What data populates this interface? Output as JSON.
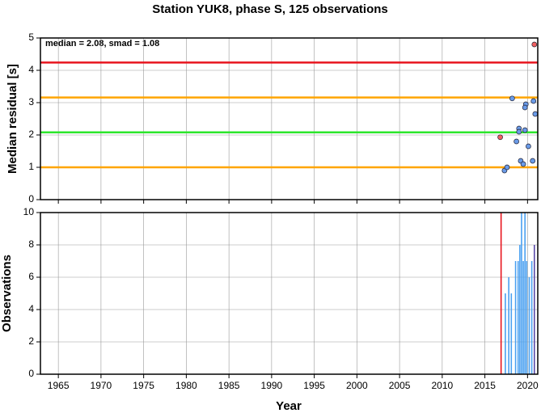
{
  "chart_data": [
    {
      "type": "scatter",
      "title": "Station YUK8, phase S, 125 observations",
      "annotation": "median = 2.08, smad = 1.08",
      "y_label": "Median residual [s]",
      "xlim": [
        1962.9,
        2021.2
      ],
      "ylim": [
        0,
        5
      ],
      "yticks": [
        0,
        1,
        2,
        3,
        4,
        5
      ],
      "grid": true,
      "hlines": [
        {
          "value": 4.24,
          "color": "#e8141e"
        },
        {
          "value": 3.16,
          "color": "#ffa500"
        },
        {
          "value": 2.08,
          "color": "#2de62d"
        },
        {
          "value": 1.0,
          "color": "#ffa500"
        }
      ],
      "series": [
        {
          "color": "#6a9be8",
          "x": [
            2017.3,
            2017.6,
            2018.2,
            2018.7,
            2019.0,
            2019.0,
            2019.2,
            2019.5,
            2019.7,
            2019.8,
            2019.7,
            2020.1,
            2020.6,
            2020.7,
            2020.9
          ],
          "values": [
            0.9,
            1.0,
            3.13,
            1.8,
            2.2,
            2.1,
            1.2,
            1.1,
            2.15,
            2.95,
            2.85,
            1.65,
            1.2,
            3.05,
            2.65
          ]
        },
        {
          "color": "#f06060",
          "x": [
            2016.8,
            2020.8
          ],
          "values": [
            1.93,
            4.8
          ]
        }
      ]
    },
    {
      "type": "bar",
      "x_label": "Year",
      "y_label": "Observations",
      "xlim": [
        1962.9,
        2021.2
      ],
      "xticks": [
        1965,
        1970,
        1975,
        1980,
        1985,
        1990,
        1995,
        2000,
        2005,
        2010,
        2015,
        2020
      ],
      "ylim": [
        0,
        10
      ],
      "yticks": [
        0,
        2,
        4,
        6,
        8,
        10
      ],
      "grid": true,
      "series": [
        {
          "color": "#e8141e",
          "x": [
            2016.9
          ],
          "values": [
            10
          ]
        },
        {
          "color": "#4aa0f0",
          "x": [
            2017.4,
            2017.8,
            2018.1,
            2018.6,
            2018.9,
            2019.1,
            2019.3,
            2019.5,
            2019.7,
            2019.9,
            2020.2,
            2020.5
          ],
          "values": [
            5,
            6,
            5,
            7,
            7,
            8,
            10,
            7,
            10,
            7,
            6,
            7
          ]
        },
        {
          "color": "#5a4aa8",
          "x": [
            2020.8
          ],
          "values": [
            8
          ]
        }
      ]
    }
  ]
}
